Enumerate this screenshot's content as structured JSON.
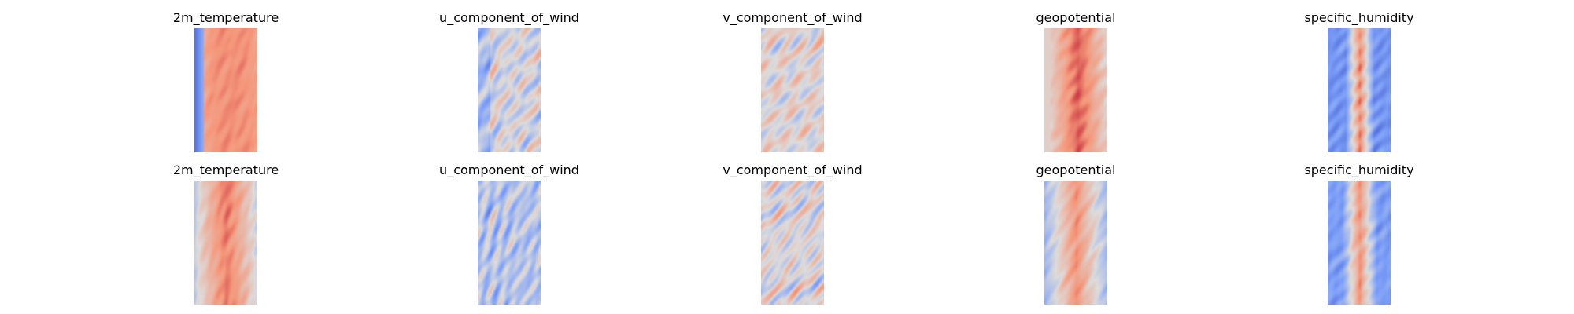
{
  "chart_data": [
    {
      "type": "heatmap",
      "title": "2m_temperature",
      "colormap": "coolwarm",
      "pattern": "temp_top"
    },
    {
      "type": "heatmap",
      "title": "u_component_of_wind",
      "colormap": "coolwarm",
      "pattern": "uwind_top"
    },
    {
      "type": "heatmap",
      "title": "v_component_of_wind",
      "colormap": "coolwarm",
      "pattern": "vwind_top"
    },
    {
      "type": "heatmap",
      "title": "geopotential",
      "colormap": "coolwarm",
      "pattern": "geo_top"
    },
    {
      "type": "heatmap",
      "title": "specific_humidity",
      "colormap": "coolwarm",
      "pattern": "hum_top"
    },
    {
      "type": "heatmap",
      "title": "2m_temperature",
      "colormap": "coolwarm",
      "pattern": "temp_bot"
    },
    {
      "type": "heatmap",
      "title": "u_component_of_wind",
      "colormap": "coolwarm",
      "pattern": "uwind_bot"
    },
    {
      "type": "heatmap",
      "title": "v_component_of_wind",
      "colormap": "coolwarm",
      "pattern": "vwind_bot"
    },
    {
      "type": "heatmap",
      "title": "geopotential",
      "colormap": "coolwarm",
      "pattern": "geo_bot"
    },
    {
      "type": "heatmap",
      "title": "specific_humidity",
      "colormap": "coolwarm",
      "pattern": "hum_bot"
    }
  ]
}
